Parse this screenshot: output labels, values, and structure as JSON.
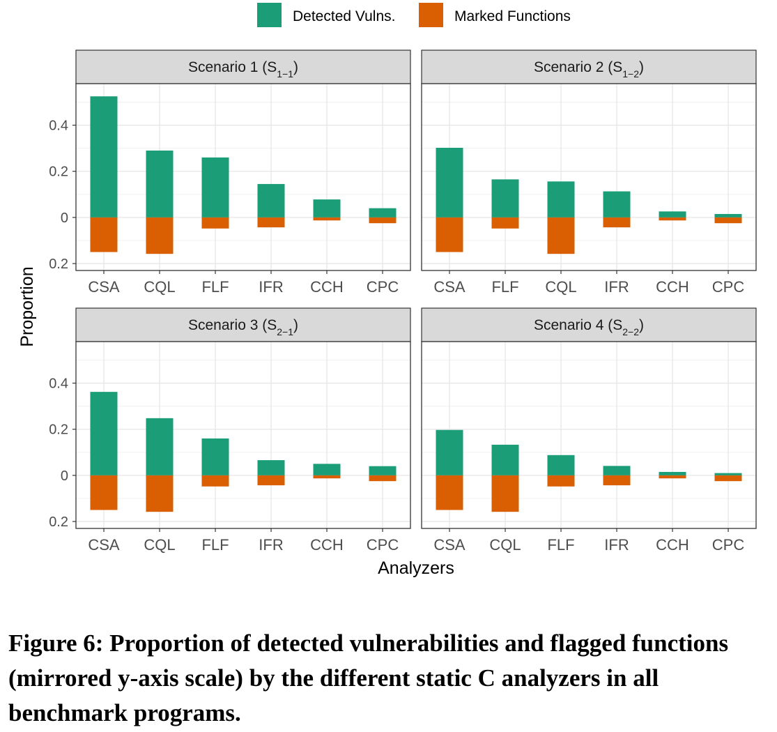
{
  "legend": [
    {
      "label": "Detected Vulns.",
      "color": "#1b9e77"
    },
    {
      "label": "Marked Functions",
      "color": "#d95f02"
    }
  ],
  "axes": {
    "ylabel": "Proportion",
    "xlabel": "Analyzers",
    "yticks": [
      {
        "value": 0.4,
        "label": "0.4"
      },
      {
        "value": 0.2,
        "label": "0.2"
      },
      {
        "value": 0,
        "label": "0"
      },
      {
        "value": -0.2,
        "label": "0.2"
      }
    ]
  },
  "caption": "Figure 6: Proportion of detected vulnerabilities and flagged functions (mirrored y-axis scale) by the different static C analyzers in all benchmark programs.",
  "chart_data": [
    {
      "type": "bar",
      "panel_label": {
        "text": "Scenario 1 (S",
        "sub": "1−1",
        "close": ")"
      },
      "categories": [
        "CSA",
        "CQL",
        "FLF",
        "IFR",
        "CCH",
        "CPC"
      ],
      "series": [
        {
          "name": "Detected Vulns.",
          "values": [
            0.525,
            0.29,
            0.26,
            0.145,
            0.078,
            0.04
          ]
        },
        {
          "name": "Marked Functions",
          "values": [
            -0.15,
            -0.158,
            -0.048,
            -0.043,
            -0.013,
            -0.025
          ]
        }
      ],
      "ylim": [
        -0.23,
        0.58
      ]
    },
    {
      "type": "bar",
      "panel_label": {
        "text": "Scenario 2 (S",
        "sub": "1−2",
        "close": ")"
      },
      "categories": [
        "CSA",
        "FLF",
        "CQL",
        "IFR",
        "CCH",
        "CPC"
      ],
      "series": [
        {
          "name": "Detected Vulns.",
          "values": [
            0.302,
            0.165,
            0.156,
            0.113,
            0.026,
            0.015
          ]
        },
        {
          "name": "Marked Functions",
          "values": [
            -0.15,
            -0.048,
            -0.158,
            -0.043,
            -0.013,
            -0.025
          ]
        }
      ],
      "ylim": [
        -0.23,
        0.58
      ]
    },
    {
      "type": "bar",
      "panel_label": {
        "text": "Scenario 3 (S",
        "sub": "2−1",
        "close": ")"
      },
      "categories": [
        "CSA",
        "CQL",
        "FLF",
        "IFR",
        "CCH",
        "CPC"
      ],
      "series": [
        {
          "name": "Detected Vulns.",
          "values": [
            0.362,
            0.248,
            0.16,
            0.066,
            0.05,
            0.04
          ]
        },
        {
          "name": "Marked Functions",
          "values": [
            -0.15,
            -0.158,
            -0.048,
            -0.043,
            -0.013,
            -0.025
          ]
        }
      ],
      "ylim": [
        -0.23,
        0.58
      ]
    },
    {
      "type": "bar",
      "panel_label": {
        "text": "Scenario 4 (S",
        "sub": "2−2",
        "close": ")"
      },
      "categories": [
        "CSA",
        "CQL",
        "FLF",
        "IFR",
        "CCH",
        "CPC"
      ],
      "series": [
        {
          "name": "Detected Vulns.",
          "values": [
            0.197,
            0.133,
            0.088,
            0.041,
            0.015,
            0.01
          ]
        },
        {
          "name": "Marked Functions",
          "values": [
            -0.15,
            -0.158,
            -0.048,
            -0.043,
            -0.013,
            -0.025
          ]
        }
      ],
      "ylim": [
        -0.23,
        0.58
      ]
    }
  ]
}
